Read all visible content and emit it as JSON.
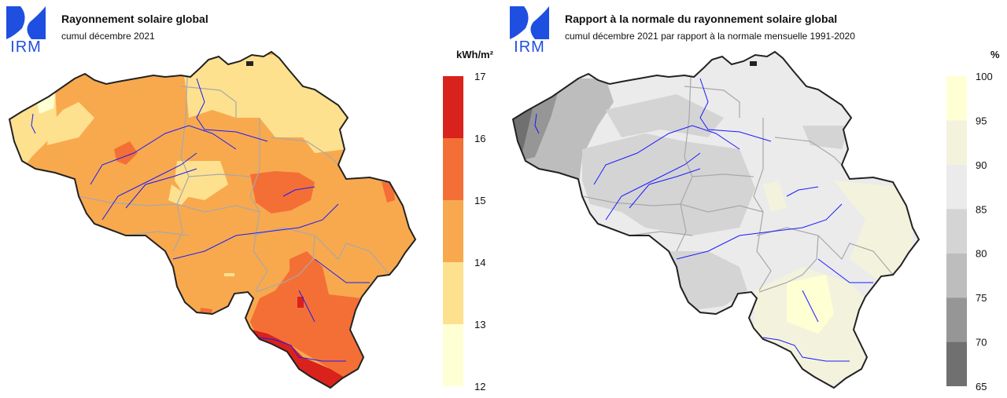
{
  "logo_text": "IRM",
  "left": {
    "title": "Rayonnement solaire global",
    "subtitle": "cumul décembre 2021",
    "unit": "kWh/m²",
    "legend": [
      {
        "value": "17",
        "color": "#d9221c"
      },
      {
        "value": "16",
        "color": "#f46f36"
      },
      {
        "value": "15",
        "color": "#f8a94e"
      },
      {
        "value": "14",
        "color": "#fde18f"
      },
      {
        "value": "13",
        "color": "#ffffd4"
      },
      {
        "value": "12",
        "color": ""
      }
    ]
  },
  "right": {
    "title": "Rapport à la normale du rayonnement solaire global",
    "subtitle": "cumul décembre 2021 par rapport à la normale mensuelle 1991-2020",
    "unit": "%",
    "legend": [
      {
        "value": "100",
        "color": "#ffffd4"
      },
      {
        "value": "95",
        "color": "#f3f3dd"
      },
      {
        "value": "90",
        "color": "#ebebeb"
      },
      {
        "value": "85",
        "color": "#d4d4d4"
      },
      {
        "value": "80",
        "color": "#bdbdbd"
      },
      {
        "value": "75",
        "color": "#969696"
      },
      {
        "value": "70",
        "color": "#707070"
      },
      {
        "value": "65",
        "color": ""
      }
    ]
  },
  "colors": {
    "logo_blue": "#1f4fe0",
    "river": "#1a1aff",
    "province_border": "#a8a8a8",
    "country_border": "#222222"
  }
}
